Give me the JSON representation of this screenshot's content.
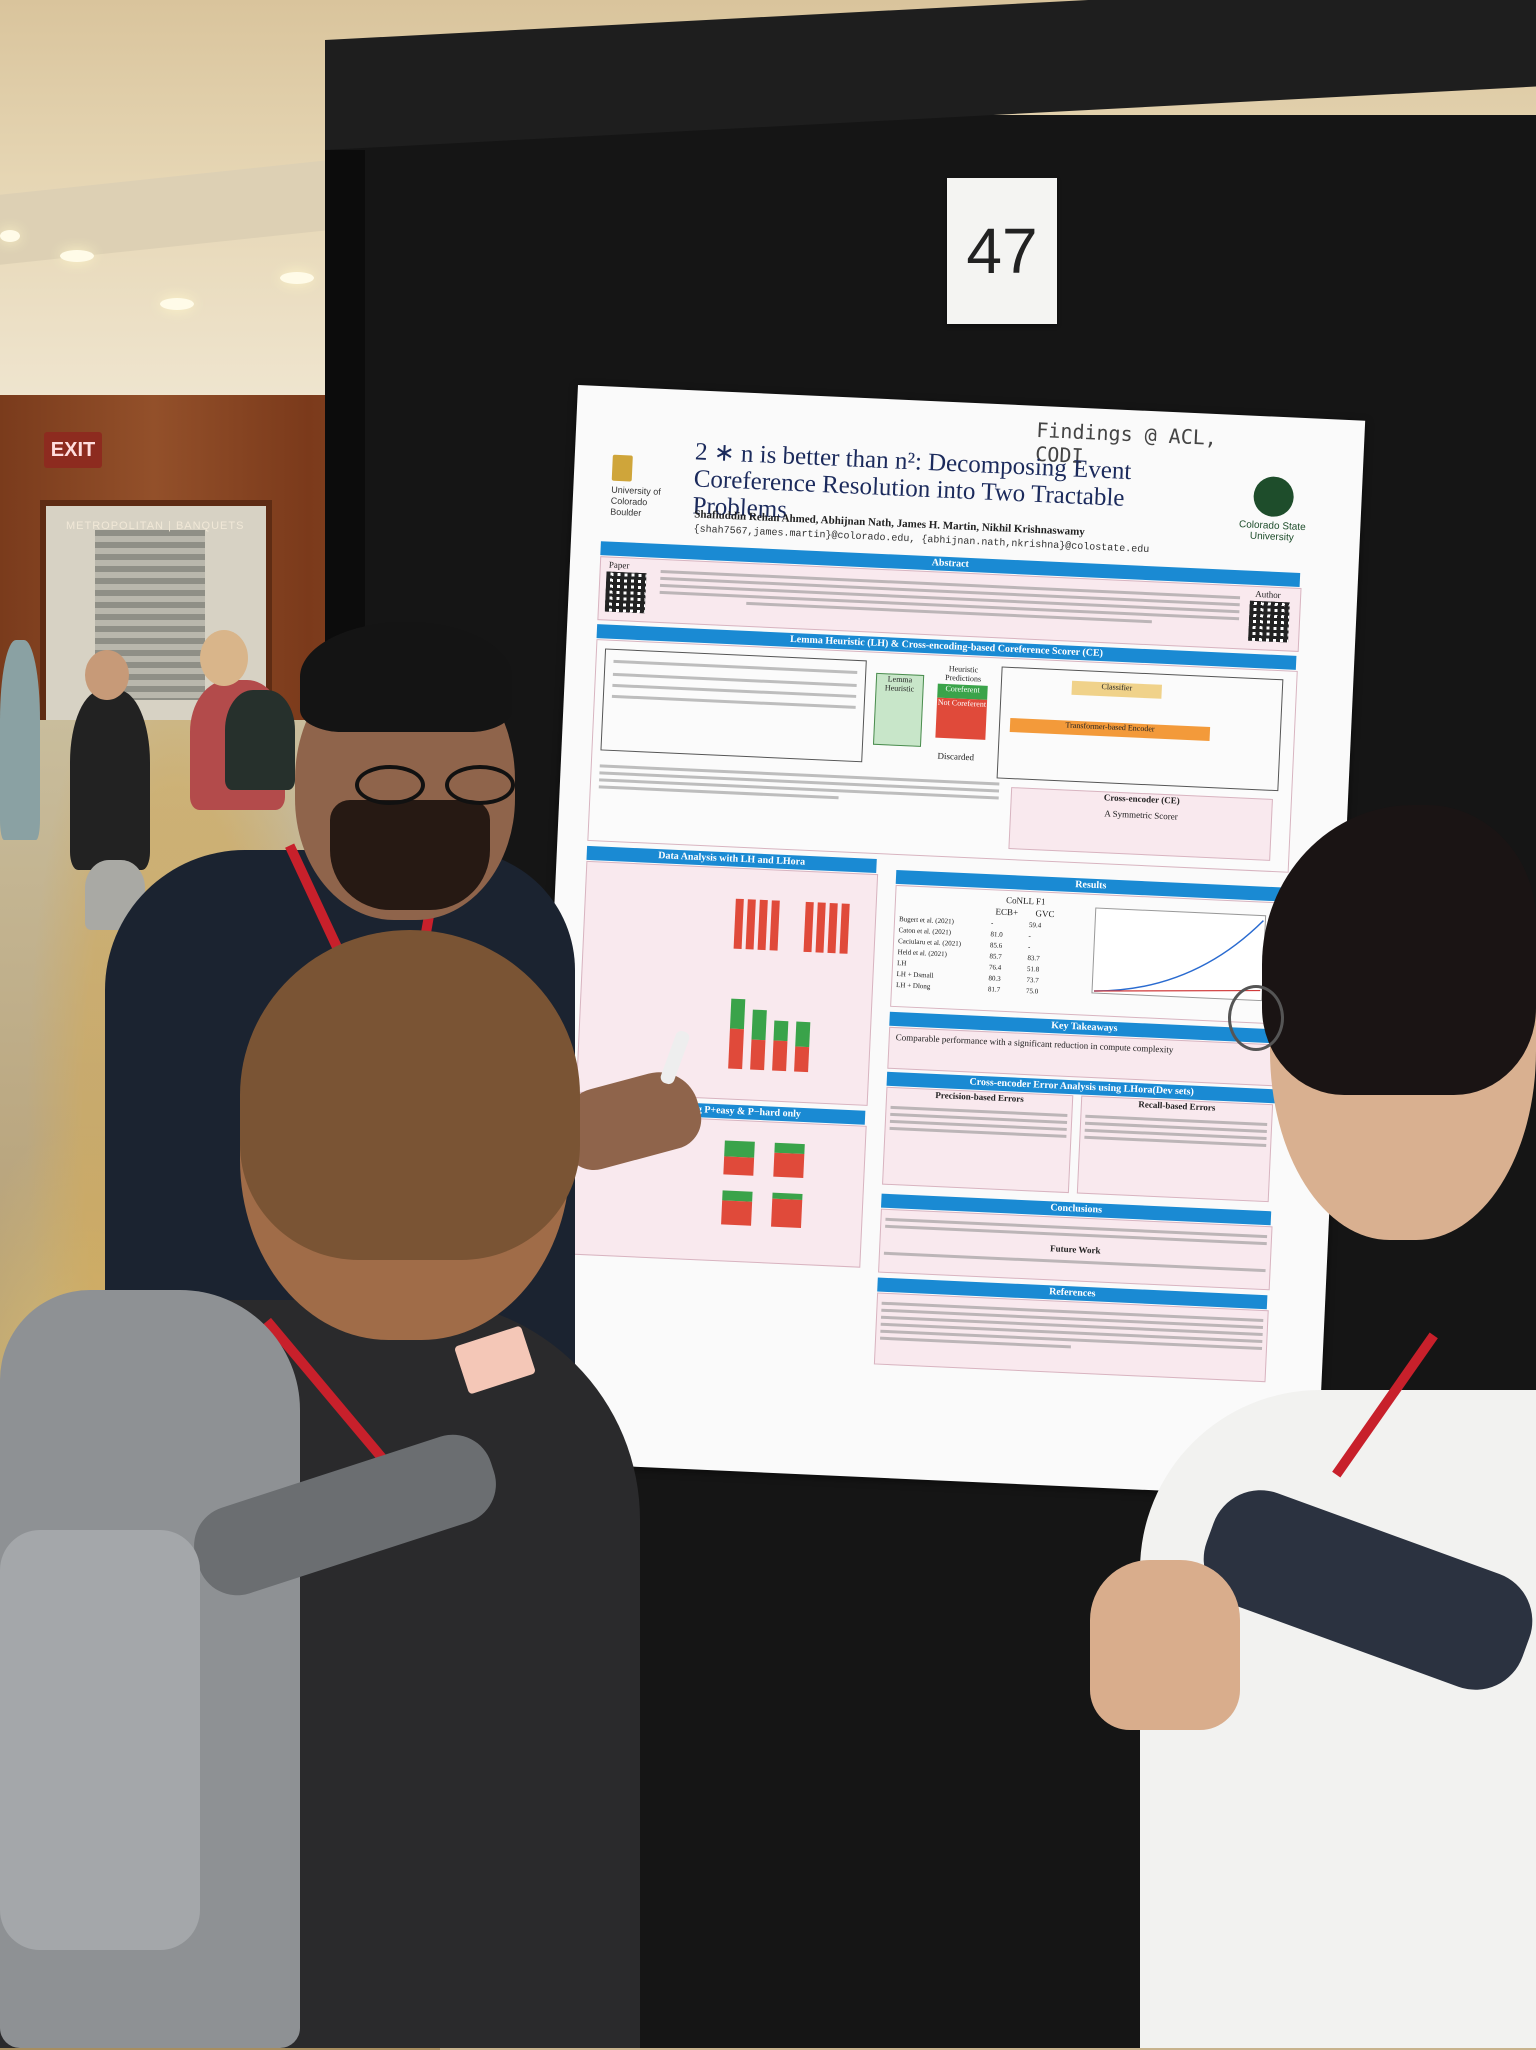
{
  "scene": {
    "exit_sign": "EXIT",
    "venue_sign": "METROPOLITAN | BANQUETS",
    "booth_number": "47"
  },
  "poster": {
    "handwritten_note": "Findings @ ACL, CODI",
    "title": "2 ∗ n is better than n²: Decomposing Event Coreference Resolution into Two Tractable Problems",
    "authors": "Shafiuddin Rehan Ahmed, Abhijnan Nath, James H. Martin, Nikhil Krishnaswamy",
    "emails": "{shah7567,james.martin}@colorado.edu, {abhijnan.nath,nkrishna}@colostate.edu",
    "left_logo": "University of Colorado Boulder",
    "right_logo": "Colorado State University",
    "sections": {
      "abstract": "Abstract",
      "lemma_heuristic": "Lemma Heuristic (LH) & Cross-encoding-based Coreference Scorer (CE)",
      "data_analysis": "Data Analysis with LH and LHora",
      "results": "Results",
      "key_takeaways": "Key Takeaways",
      "error_analysis": "Cross-encoder Error Analysis using LHora(Dev sets)",
      "conclusions": "Conclusions",
      "references": "References",
      "training": "Training using P+easy & P−hard only"
    },
    "labels": {
      "paper": "Paper",
      "author": "Author",
      "lemma": "Lemma Heuristic",
      "heuristic_predictions": "Heuristic Predictions",
      "coreferent": "Coreferent",
      "not_coreferent": "Not Coreferent",
      "discarded": "Discarded",
      "classifier": "Classifier",
      "encoder": "Transformer-based Encoder",
      "cross_encoder": "Cross-encoder (CE)",
      "symmetric_scorer": "A Symmetric Scorer",
      "results_col": "CoNLL F1",
      "ecb": "ECB+",
      "gvc": "GVC",
      "future_work": "Future Work",
      "precision_errors": "Precision-based Errors",
      "recall_errors": "Recall-based Errors",
      "takeaway_text": "Comparable performance with a significant reduction in compute complexity"
    },
    "results_rows": [
      {
        "method": "Bugert et al. (2021)",
        "ecb": "-",
        "gvc": "59.4"
      },
      {
        "method": "Caton et al. (2021)",
        "ecb": "81.0",
        "gvc": "-"
      },
      {
        "method": "Caciularu et al. (2021)",
        "ecb": "85.6",
        "gvc": "-"
      },
      {
        "method": "Held et al. (2021)",
        "ecb": "85.7",
        "gvc": "83.7"
      },
      {
        "method": "LH",
        "ecb": "76.4",
        "gvc": "51.8"
      },
      {
        "method": "LH + Dsmall",
        "ecb": "80.3",
        "gvc": "73.7"
      },
      {
        "method": "LH + Dlong",
        "ecb": "81.7",
        "gvc": "75.0"
      }
    ]
  }
}
